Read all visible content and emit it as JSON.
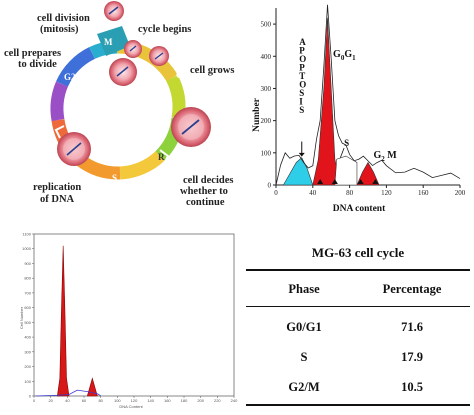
{
  "cycle_diagram": {
    "labels": {
      "division": "cell division\n(mitosis)",
      "begins": "cycle begins",
      "prepares": "cell prepares\nto divide",
      "grows": "cell grows",
      "replication": "replication\nof DNA",
      "decides": "cell decides\nwhether to\ncontinue"
    },
    "phases": {
      "m": "M",
      "g2": "G2",
      "g1": "G1",
      "s": "S",
      "r": "R"
    }
  },
  "histogram_1": {
    "ylabel": "Number",
    "xlabel": "DNA content",
    "apoptosis_label": "APOPTOSIS",
    "peak_labels": {
      "g0g1_main": "G",
      "g0g1_sub0": "0",
      "g0g1_sub1": "1",
      "g1_g": "G",
      "s": "S",
      "g2m_g": "G",
      "g2m_sub": "2",
      "g2m_m": " M"
    },
    "colors": {
      "g0g1": "#e0141a",
      "apoptosis": "#2ecde8",
      "g2m": "#e0141a",
      "outline": "#222222"
    }
  },
  "chart_data": [
    {
      "type": "area",
      "xlabel": "DNA content",
      "ylabel": "Number",
      "xlim": [
        0,
        200
      ],
      "ylim": [
        0,
        550
      ],
      "x_ticks": [
        0,
        40,
        80,
        120,
        160,
        200
      ],
      "y_ticks": [
        0,
        100,
        200,
        300,
        400,
        500
      ],
      "series": [
        {
          "name": "APOPTOSIS",
          "x": [
            8,
            16,
            22,
            28,
            34,
            40
          ],
          "y": [
            0,
            40,
            70,
            85,
            50,
            0
          ]
        },
        {
          "name": "G0G1",
          "x": [
            40,
            46,
            52,
            56,
            60,
            64,
            70
          ],
          "y": [
            0,
            80,
            300,
            520,
            300,
            80,
            0
          ]
        },
        {
          "name": "G2M",
          "x": [
            88,
            94,
            100,
            106,
            112
          ],
          "y": [
            0,
            40,
            70,
            40,
            0
          ]
        }
      ],
      "envelope": {
        "x": [
          0,
          10,
          20,
          30,
          40,
          48,
          56,
          64,
          72,
          80,
          90,
          100,
          110,
          120,
          140,
          160,
          180,
          200
        ],
        "y": [
          0,
          100,
          90,
          70,
          60,
          200,
          560,
          200,
          130,
          95,
          80,
          75,
          70,
          60,
          40,
          40,
          30,
          20
        ]
      }
    },
    {
      "type": "area",
      "xlabel": "DNA Content",
      "ylabel": "Cell Number",
      "xlim": [
        0,
        240
      ],
      "ylim": [
        0,
        1100
      ],
      "x_ticks": [
        0,
        20,
        40,
        60,
        80,
        100,
        120,
        140,
        160,
        180,
        200,
        220,
        240
      ],
      "y_ticks": [
        0,
        100,
        200,
        300,
        400,
        500,
        600,
        700,
        800,
        900,
        1000,
        1100
      ],
      "series": [
        {
          "name": "G0/G1",
          "x": [
            28,
            31,
            33,
            35,
            37,
            39,
            42
          ],
          "y": [
            0,
            120,
            600,
            1020,
            600,
            120,
            0
          ]
        },
        {
          "name": "G2/M",
          "x": [
            64,
            67,
            70,
            73,
            76
          ],
          "y": [
            0,
            60,
            120,
            60,
            0
          ]
        }
      ]
    }
  ],
  "table": {
    "title": "MG-63 cell cycle",
    "headers": [
      "Phase",
      "Percentage"
    ],
    "rows": [
      {
        "phase": "G0/G1",
        "pct": "71.6"
      },
      {
        "phase": "S",
        "pct": "17.9"
      },
      {
        "phase": "G2/M",
        "pct": "10.5"
      }
    ]
  }
}
